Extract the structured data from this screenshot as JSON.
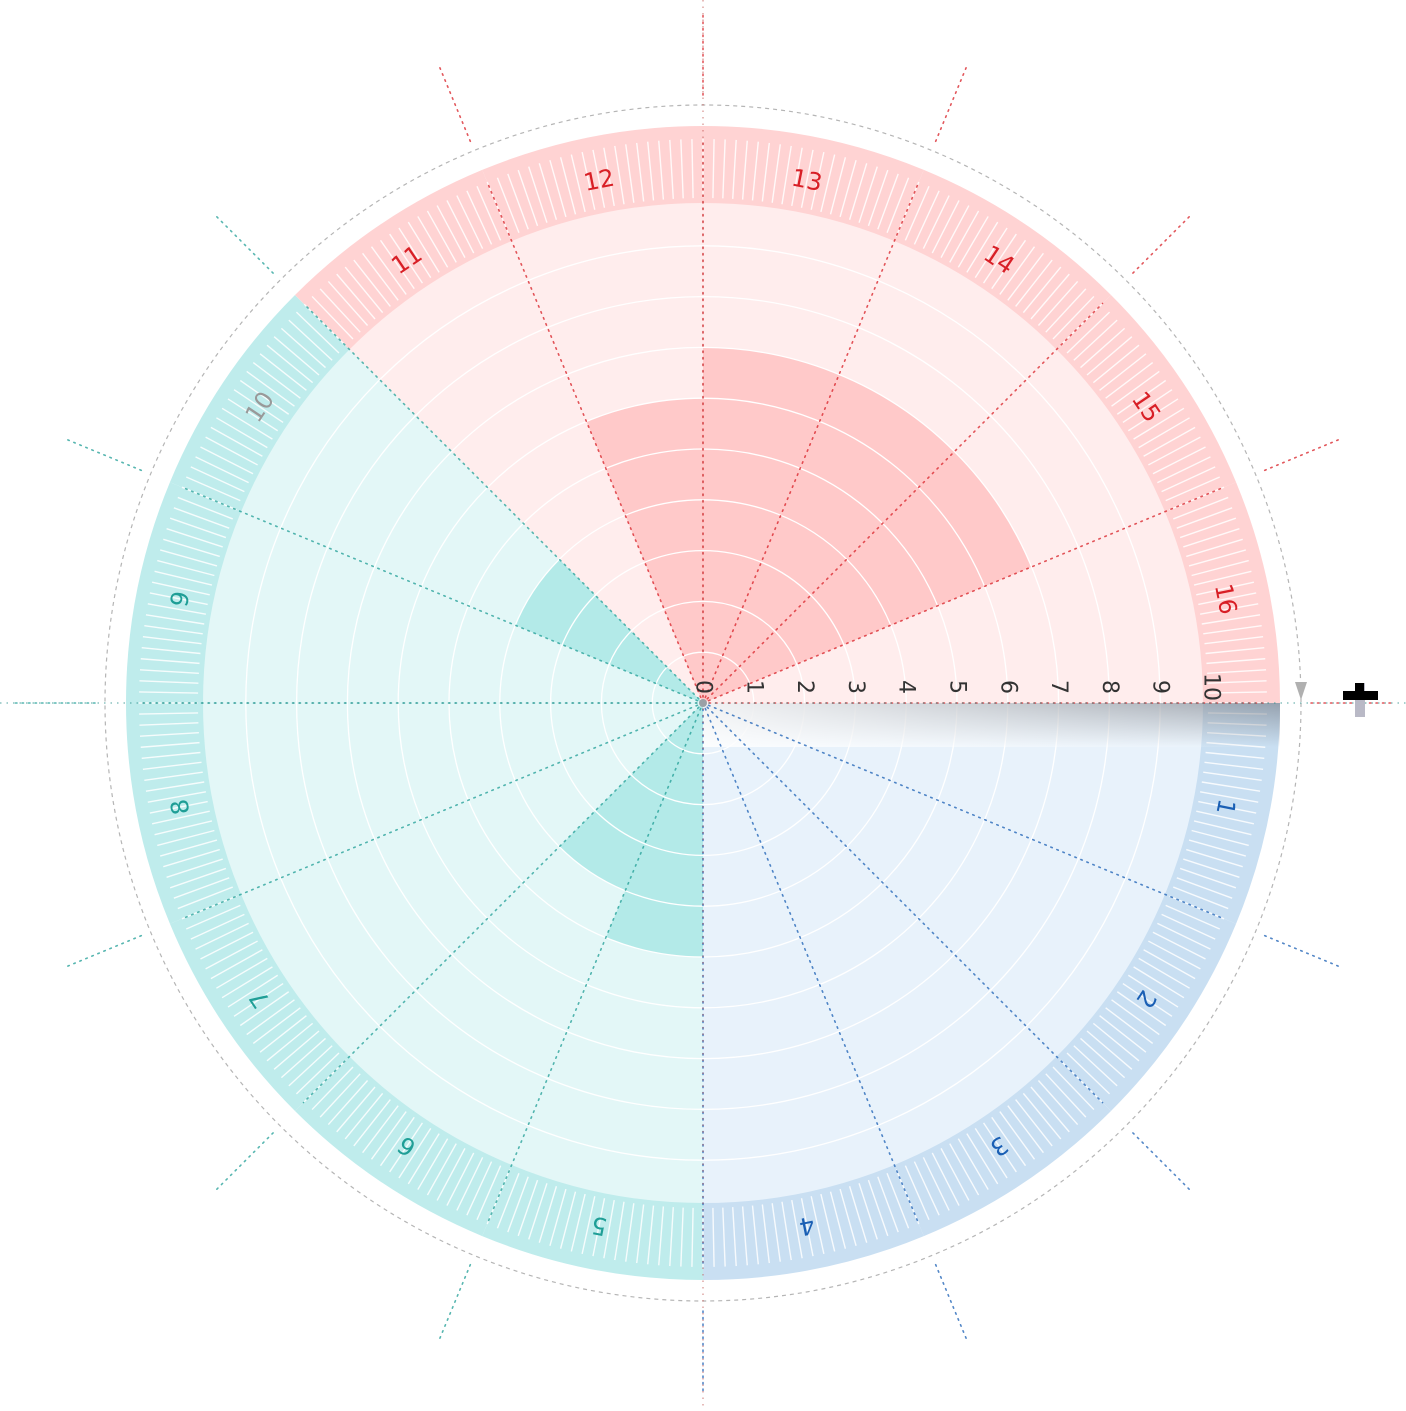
{
  "chart_data": {
    "type": "polar-bar",
    "sectors": [
      "1",
      "2",
      "3",
      "4",
      "5",
      "6",
      "7",
      "8",
      "9",
      "10",
      "11",
      "12",
      "13",
      "14",
      "15",
      "16"
    ],
    "values": [
      0,
      0,
      0,
      0,
      5,
      4,
      0,
      0,
      0,
      4,
      0,
      6,
      7,
      7,
      7,
      0
    ],
    "radial_axis": {
      "min": 0,
      "max": 10,
      "ticks": [
        "0",
        "1",
        "2",
        "3",
        "4",
        "5",
        "6",
        "7",
        "8",
        "9",
        "10"
      ]
    },
    "groups": [
      {
        "name": "",
        "sectors": [
          "1",
          "2",
          "3",
          "4"
        ],
        "color": "#1a5fb4",
        "ring": "#c9dff2",
        "fill": "#e8f2fb",
        "bar": "#c9e2f6"
      },
      {
        "name": "",
        "sectors": [
          "5",
          "6",
          "7",
          "8",
          "9",
          "10"
        ],
        "color": "#1f9e96",
        "ring": "#bfecec",
        "fill": "#e3f7f7",
        "bar": "#b3eae8"
      },
      {
        "name": "",
        "sectors": [
          "11",
          "12",
          "13",
          "14",
          "15",
          "16"
        ],
        "color": "#d81f26",
        "ring": "#ffd3d3",
        "fill": "#ffeded",
        "bar": "#ffc9c9"
      }
    ],
    "colors": {
      "transition_label": "#999999",
      "axis_label": "#333333",
      "guide": "#b5b5b5"
    },
    "grid": true
  },
  "controls": {
    "add_icon": "plus-icon",
    "pointer_icon": "triangle-down-icon"
  }
}
